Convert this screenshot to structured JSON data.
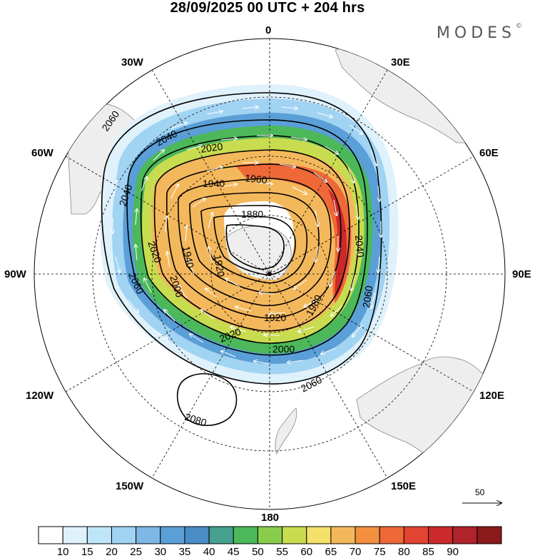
{
  "title": "28/09/2025  00 UTC  + 204 hrs",
  "brand": "MODES",
  "brand_mark": "©",
  "longitude_labels": {
    "l0": "0",
    "l30e": "30E",
    "l60e": "60E",
    "l90e": "90E",
    "l120e": "120E",
    "l150e": "150E",
    "l180": "180",
    "l150w": "150W",
    "l120w": "120W",
    "l90w": "90W",
    "l60w": "60W",
    "l30w": "30W"
  },
  "contour_labels": [
    "2060",
    "2040",
    "2020",
    "1960",
    "1940",
    "1880",
    "1940",
    "2020",
    "2040",
    "1920",
    "1980",
    "2060",
    "2000",
    "1920",
    "2000",
    "2040",
    "2060",
    "2020",
    "2060",
    "2080"
  ],
  "reference_vector": {
    "value": "50"
  },
  "colorbar": {
    "colors": [
      "#ffffff",
      "#dff1fb",
      "#bfe5f8",
      "#a1d3f2",
      "#7db8e6",
      "#5a9fd7",
      "#4a8cc5",
      "#45a08e",
      "#4cb85a",
      "#88cc4c",
      "#c8dc50",
      "#f5e06a",
      "#f4b85c",
      "#f29040",
      "#ee6838",
      "#e34432",
      "#cc2a2a",
      "#b0232a",
      "#8b1a1a"
    ],
    "labels": [
      "10",
      "15",
      "20",
      "25",
      "30",
      "35",
      "40",
      "45",
      "50",
      "55",
      "60",
      "65",
      "70",
      "75",
      "80",
      "85",
      "90"
    ]
  }
}
